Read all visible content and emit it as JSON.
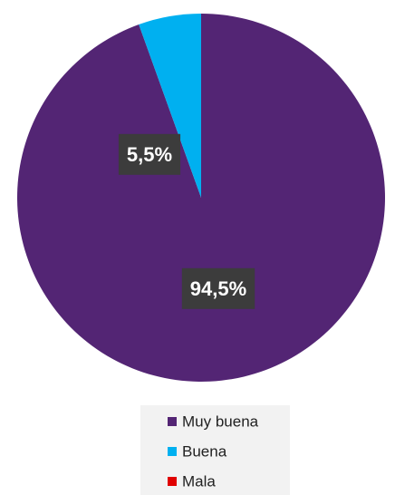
{
  "chart_data": {
    "type": "pie",
    "categories": [
      "Muy buena",
      "Buena",
      "Mala"
    ],
    "values": [
      94.5,
      5.5,
      0
    ],
    "value_labels": [
      "94,5%",
      "5,5%",
      null
    ],
    "colors": [
      "#532574",
      "#00b0f0",
      "#e00000"
    ],
    "legend": "bottom"
  }
}
